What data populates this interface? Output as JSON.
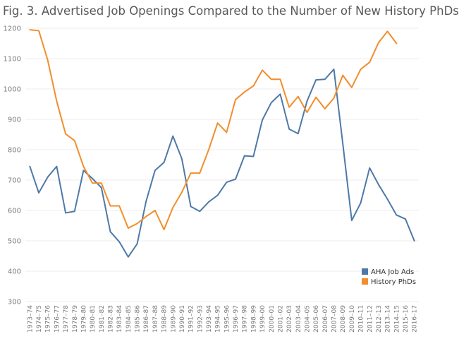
{
  "chart_data": {
    "type": "line",
    "title": "Fig. 3. Advertised Job Openings Compared to the Number of New History PhDs",
    "xlabel": "",
    "ylabel": "",
    "ylim": [
      300,
      1200
    ],
    "yticks": [
      300,
      400,
      500,
      600,
      700,
      800,
      900,
      1000,
      1100,
      1200
    ],
    "grid": true,
    "legend_position": "bottom-right",
    "categories": [
      "1973–74",
      "1974–75",
      "1975–76",
      "1976–77",
      "1977–78",
      "1978–79",
      "1979–80",
      "1980–81",
      "1981–82",
      "1982–83",
      "1983–84",
      "1984–85",
      "1985–86",
      "1986–87",
      "1987–88",
      "1988–89",
      "1989–90",
      "1990–91",
      "1991–92",
      "1992–93",
      "1993–94",
      "1994–95",
      "1995–96",
      "1996–97",
      "1997–98",
      "1998–99",
      "1999–00",
      "2000–01",
      "2001–02",
      "2002–03",
      "2003–04",
      "2004–05",
      "2005–06",
      "2006–07",
      "2007–08",
      "2008–09",
      "2009–10",
      "2010–11",
      "2011–12",
      "2012–13",
      "2013–14",
      "2014–15",
      "2015–16",
      "2016–17"
    ],
    "series": [
      {
        "name": "AHA Job Ads",
        "color": "#4e79a7",
        "values": [
          745,
          658,
          710,
          745,
          592,
          597,
          732,
          705,
          675,
          530,
          497,
          447,
          490,
          630,
          732,
          758,
          845,
          770,
          613,
          597,
          628,
          650,
          693,
          703,
          780,
          778,
          898,
          955,
          983,
          868,
          853,
          960,
          1030,
          1032,
          1065,
          820,
          567,
          625,
          740,
          685,
          637,
          585,
          572,
          500
        ]
      },
      {
        "name": "History PhDs",
        "color": "#f28e2b",
        "values": [
          1195,
          1192,
          1095,
          960,
          852,
          830,
          745,
          690,
          690,
          615,
          615,
          542,
          557,
          580,
          600,
          537,
          610,
          660,
          723,
          723,
          800,
          888,
          857,
          965,
          990,
          1010,
          1062,
          1032,
          1032,
          940,
          975,
          923,
          973,
          935,
          970,
          1045,
          1005,
          1065,
          1088,
          1153,
          1190,
          1150,
          null,
          null
        ]
      }
    ]
  }
}
